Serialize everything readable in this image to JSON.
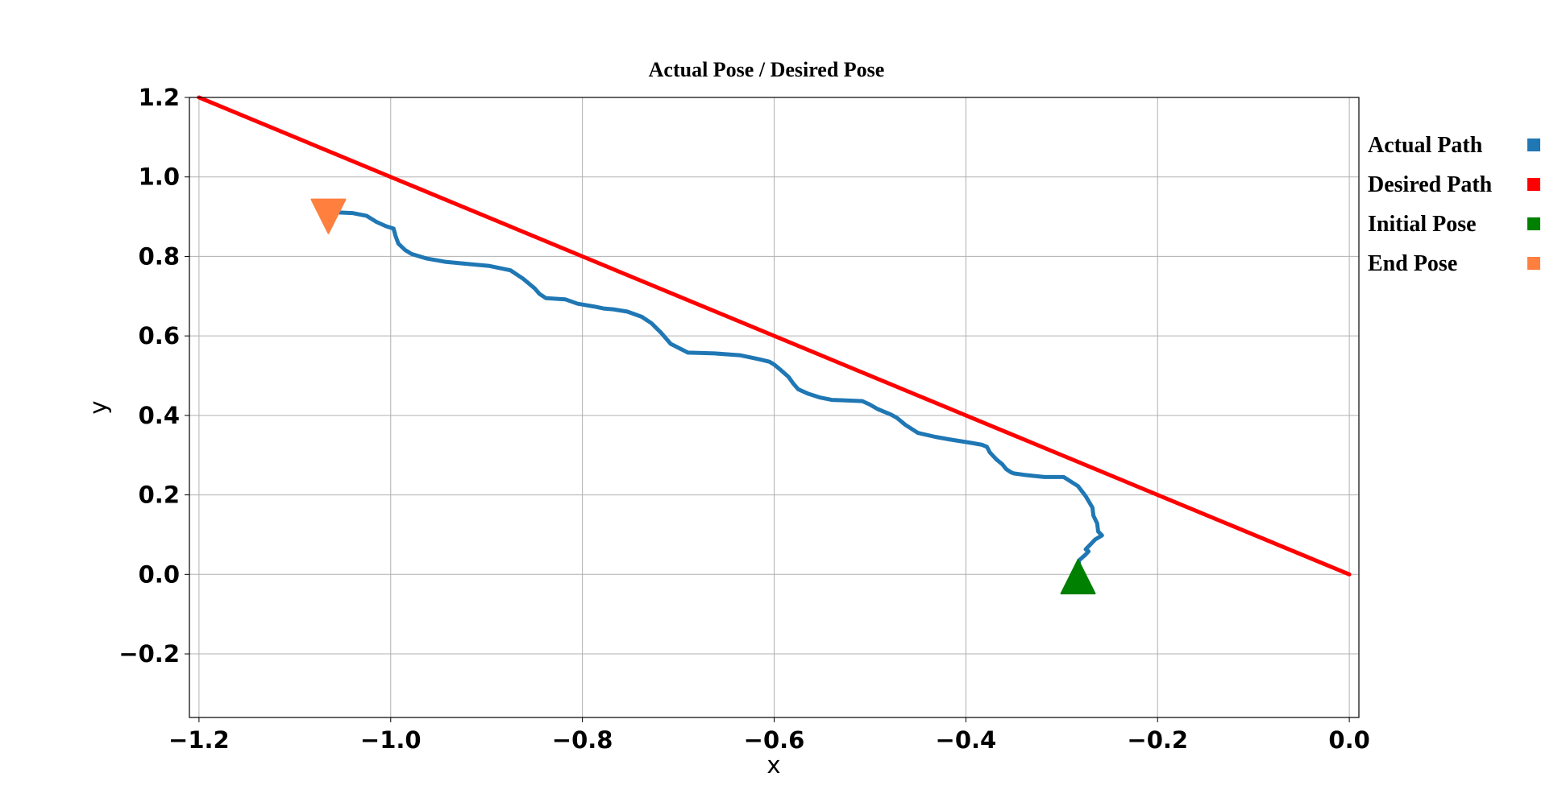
{
  "chart_data": {
    "type": "line",
    "title": "Actual Pose / Desired Pose",
    "xlabel": "x",
    "ylabel": "y",
    "xlim": [
      -1.21,
      0.01
    ],
    "ylim": [
      -0.36,
      1.2
    ],
    "xticks": [
      -1.2,
      -1.0,
      -0.8,
      -0.6,
      -0.4,
      -0.2,
      0.0
    ],
    "xtick_labels": [
      "−1.2",
      "−1.0",
      "−0.8",
      "−0.6",
      "−0.4",
      "−0.2",
      "0.0"
    ],
    "yticks": [
      -0.2,
      0.0,
      0.2,
      0.4,
      0.6,
      0.8,
      1.0,
      1.2
    ],
    "ytick_labels": [
      "−0.2",
      "0.0",
      "0.2",
      "0.4",
      "0.6",
      "0.8",
      "1.0",
      "1.2"
    ],
    "grid": true,
    "legend_position": "right",
    "series": [
      {
        "name": "Actual Path",
        "color": "#1f77b4",
        "x": [
          -0.283,
          -0.282,
          -0.275,
          -0.272,
          -0.275,
          -0.265,
          -0.258,
          -0.262,
          -0.263,
          -0.267,
          -0.268,
          -0.275,
          -0.283,
          -0.298,
          -0.318,
          -0.338,
          -0.35,
          -0.353,
          -0.358,
          -0.362,
          -0.368,
          -0.375,
          -0.378,
          -0.383,
          -0.395,
          -0.405,
          -0.418,
          -0.432,
          -0.45,
          -0.463,
          -0.472,
          -0.478,
          -0.483,
          -0.492,
          -0.5,
          -0.508,
          -0.518,
          -0.528,
          -0.54,
          -0.552,
          -0.565,
          -0.575,
          -0.58,
          -0.585,
          -0.593,
          -0.6,
          -0.605,
          -0.615,
          -0.635,
          -0.662,
          -0.69,
          -0.708,
          -0.718,
          -0.723,
          -0.728,
          -0.738,
          -0.753,
          -0.768,
          -0.778,
          -0.788,
          -0.805,
          -0.818,
          -0.838,
          -0.845,
          -0.85,
          -0.862,
          -0.875,
          -0.897,
          -0.92,
          -0.942,
          -0.963,
          -0.978,
          -0.985,
          -0.992,
          -0.995,
          -0.997,
          -1.005,
          -1.015,
          -1.025,
          -1.04,
          -1.058,
          -1.065
        ],
        "y": [
          -0.005,
          0.035,
          0.05,
          0.058,
          0.063,
          0.088,
          0.098,
          0.108,
          0.128,
          0.148,
          0.168,
          0.197,
          0.222,
          0.245,
          0.245,
          0.25,
          0.254,
          0.257,
          0.265,
          0.277,
          0.289,
          0.307,
          0.321,
          0.326,
          0.331,
          0.335,
          0.34,
          0.346,
          0.356,
          0.376,
          0.394,
          0.402,
          0.407,
          0.416,
          0.427,
          0.436,
          0.437,
          0.438,
          0.439,
          0.445,
          0.455,
          0.466,
          0.48,
          0.497,
          0.514,
          0.528,
          0.535,
          0.541,
          0.551,
          0.556,
          0.558,
          0.58,
          0.608,
          0.62,
          0.632,
          0.648,
          0.661,
          0.667,
          0.669,
          0.674,
          0.681,
          0.692,
          0.695,
          0.706,
          0.72,
          0.744,
          0.765,
          0.776,
          0.781,
          0.786,
          0.795,
          0.806,
          0.816,
          0.832,
          0.852,
          0.87,
          0.876,
          0.887,
          0.902,
          0.909,
          0.911,
          0.907
        ]
      },
      {
        "name": "Desired Path",
        "color": "#ff0000",
        "x": [
          -1.2,
          0.0
        ],
        "y": [
          1.2,
          0.0
        ]
      }
    ],
    "markers": [
      {
        "name": "Initial Pose",
        "shape": "triangle-up",
        "color": "#008000",
        "x": -0.283,
        "y": -0.02
      },
      {
        "name": "End Pose",
        "shape": "triangle-down",
        "color": "#ff7f3f",
        "x": -1.065,
        "y": 0.915
      }
    ],
    "legend": [
      {
        "label": "Actual Path",
        "color": "#1f77b4"
      },
      {
        "label": "Desired Path",
        "color": "#ff0000"
      },
      {
        "label": "Initial Pose",
        "color": "#008000"
      },
      {
        "label": "End Pose",
        "color": "#ff7f3f"
      }
    ]
  }
}
